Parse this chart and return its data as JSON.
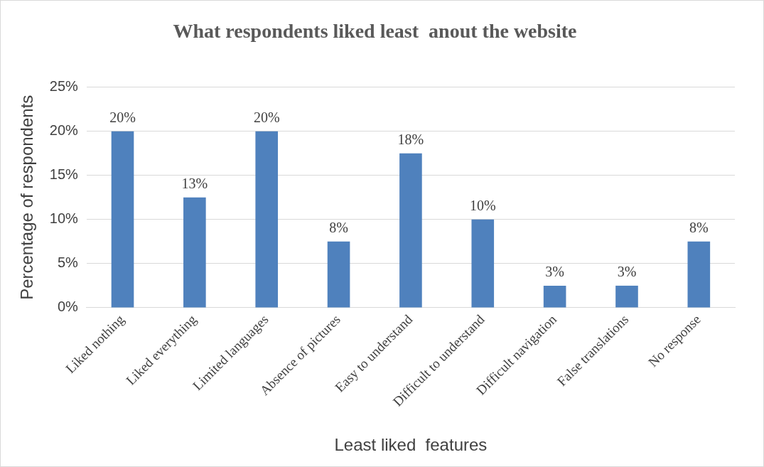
{
  "chart_data": {
    "type": "bar",
    "title": "What respondents liked least  anout the website",
    "xlabel": "Least liked  features",
    "ylabel": "Percentage of respondents",
    "categories": [
      "Liked nothing",
      "Liked everything",
      "Limited languages",
      "Absence of pictures",
      "Easy to understand",
      "Difficult to understand",
      "Difficult navigation",
      "False translations",
      "No response"
    ],
    "values": [
      20,
      12.5,
      20,
      7.5,
      17.5,
      10,
      2.5,
      2.5,
      7.5
    ],
    "value_labels": [
      "20%",
      "13%",
      "20%",
      "8%",
      "18%",
      "10%",
      "3%",
      "3%",
      "8%"
    ],
    "color": "#4f81bd",
    "ylim": [
      0,
      25
    ],
    "yticks": [
      {
        "value": 0,
        "label": "0%"
      },
      {
        "value": 5,
        "label": "5%"
      },
      {
        "value": 10,
        "label": "10%"
      },
      {
        "value": 15,
        "label": "15%"
      },
      {
        "value": 20,
        "label": "20%"
      },
      {
        "value": 25,
        "label": "25%"
      }
    ],
    "grid": "y",
    "legend": false
  }
}
